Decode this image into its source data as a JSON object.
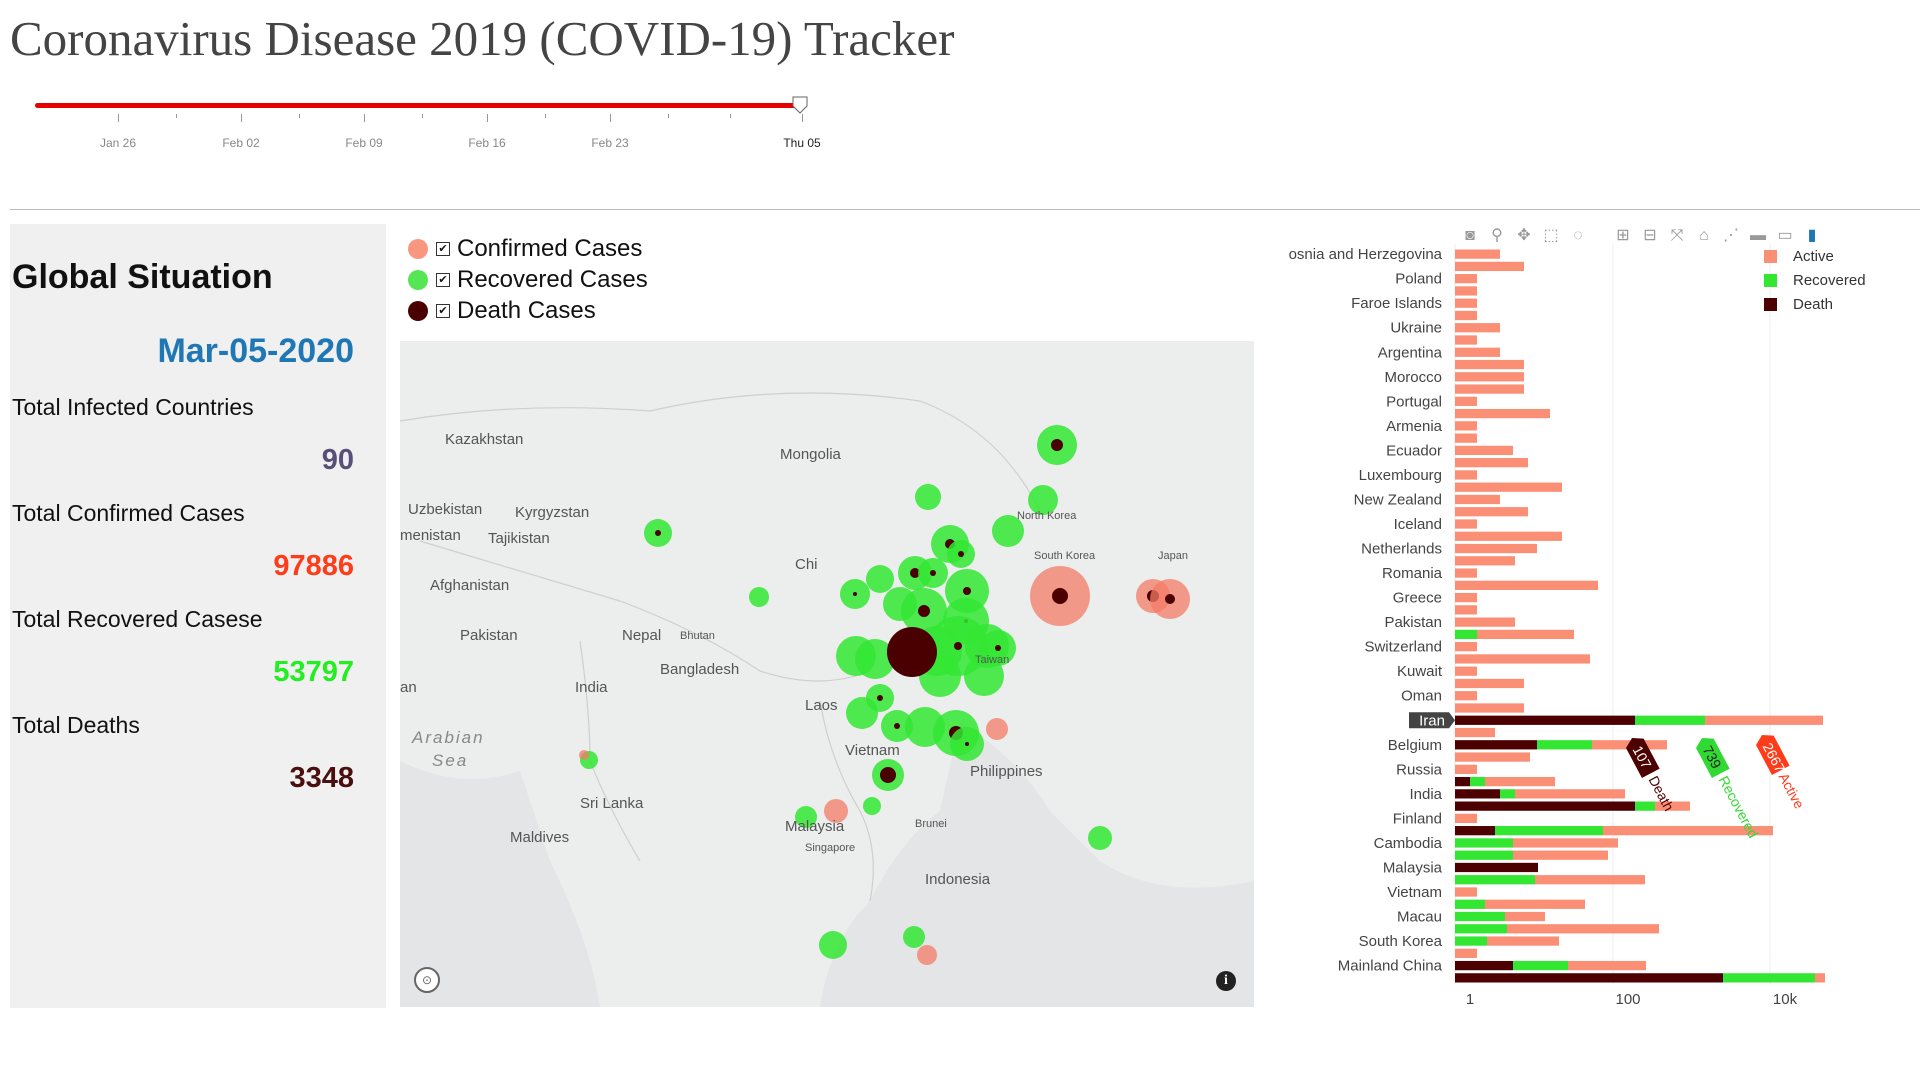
{
  "title": "Coronavirus Disease 2019 (COVID-19) Tracker",
  "slider": {
    "ticks": [
      "Jan 26",
      "Feb 02",
      "Feb 09",
      "Feb 16",
      "Feb 23",
      "Thu 05"
    ],
    "selected": "Thu 05",
    "value_fraction": 1.0,
    "color": "#e60000"
  },
  "panel": {
    "title": "Global Situation",
    "date": "Mar-05-2020",
    "stats": [
      {
        "label": "Total Infected Countries",
        "value": "90",
        "color": "#58507a"
      },
      {
        "label": "Total Confirmed Cases",
        "value": "97886",
        "color": "#ff3c1a"
      },
      {
        "label": "Total Recovered Casese",
        "value": "53797",
        "color": "#22ee22"
      },
      {
        "label": "Total Deaths",
        "value": "3348",
        "color": "#4a0f0f"
      }
    ]
  },
  "map_legend": [
    {
      "label": "Confirmed Cases",
      "color": "#f9967f",
      "checked": "✔"
    },
    {
      "label": "Recovered Cases",
      "color": "#55e655",
      "checked": "✔"
    },
    {
      "label": "Death Cases",
      "color": "#4a0000",
      "checked": "✔"
    }
  ],
  "map": {
    "labels": [
      {
        "text": "Kazakhstan",
        "kind": "country"
      },
      {
        "text": "Mongolia",
        "kind": "country"
      },
      {
        "text": "Uzbekistan",
        "kind": "country"
      },
      {
        "text": "Kyrgyzstan",
        "kind": "country"
      },
      {
        "text": "menistan",
        "kind": "country"
      },
      {
        "text": "Tajikistan",
        "kind": "country"
      },
      {
        "text": "Afghanistan",
        "kind": "country"
      },
      {
        "text": "Pakistan",
        "kind": "country"
      },
      {
        "text": "Nepal",
        "kind": "country"
      },
      {
        "text": "Bhutan",
        "kind": "small"
      },
      {
        "text": "Bangladesh",
        "kind": "country"
      },
      {
        "text": "India",
        "kind": "country"
      },
      {
        "text": "an",
        "kind": "country"
      },
      {
        "text": "Chi",
        "kind": "country"
      },
      {
        "text": "North Korea",
        "kind": "small"
      },
      {
        "text": "South Korea",
        "kind": "small"
      },
      {
        "text": "Japan",
        "kind": "small"
      },
      {
        "text": "Taiwan",
        "kind": "small"
      },
      {
        "text": "Laos",
        "kind": "country"
      },
      {
        "text": "Vietnam",
        "kind": "country"
      },
      {
        "text": "Philippines",
        "kind": "country"
      },
      {
        "text": "Arabian",
        "kind": "sea"
      },
      {
        "text": "Sea",
        "kind": "sea"
      },
      {
        "text": "Sri Lanka",
        "kind": "country"
      },
      {
        "text": "Maldives",
        "kind": "country"
      },
      {
        "text": "Malaysia",
        "kind": "country"
      },
      {
        "text": "Brunei",
        "kind": "small"
      },
      {
        "text": "Singapore",
        "kind": "small"
      },
      {
        "text": "Indonesia",
        "kind": "country"
      }
    ],
    "info_icon": "info-icon",
    "logo_icon": "mapbox-logo-icon"
  },
  "modebar": [
    "camera-icon",
    "zoom-icon",
    "pan-icon",
    "box-select-icon",
    "lasso-icon",
    "zoom-in-icon",
    "zoom-out-icon",
    "autoscale-icon",
    "reset-axes-icon",
    "spike-lines-icon",
    "hover-closest-icon",
    "hover-compare-icon",
    "plotly-logo-icon"
  ],
  "chart_data": {
    "type": "bar",
    "orientation": "horizontal",
    "barmode": "stack",
    "x_scale": "log",
    "x_ticks": [
      "1",
      "100",
      "10k"
    ],
    "legend_position": "top-right",
    "series": [
      {
        "name": "Active",
        "color": "#fa8f76"
      },
      {
        "name": "Recovered",
        "color": "#32e632"
      },
      {
        "name": "Death",
        "color": "#4d0000"
      }
    ],
    "categories_labeled": [
      "Bosnia and Herzegovina",
      "Poland",
      "Faroe Islands",
      "Ukraine",
      "Argentina",
      "Morocco",
      "Portugal",
      "Armenia",
      "Ecuador",
      "Luxembourg",
      "New Zealand",
      "Iceland",
      "Netherlands",
      "Romania",
      "Greece",
      "Pakistan",
      "Switzerland",
      "Kuwait",
      "Oman",
      "Iran",
      "Belgium",
      "Russia",
      "India",
      "Finland",
      "Cambodia",
      "Malaysia",
      "Vietnam",
      "Macau",
      "South Korea",
      "Mainland China"
    ],
    "label_prefix_cut": "3",
    "hover": {
      "country": "Iran",
      "death": 107,
      "recovered": 739,
      "active": 2667,
      "death_text": "107 Death",
      "recovered_text": "739 Recovered",
      "active_text": "2667 Active"
    }
  }
}
